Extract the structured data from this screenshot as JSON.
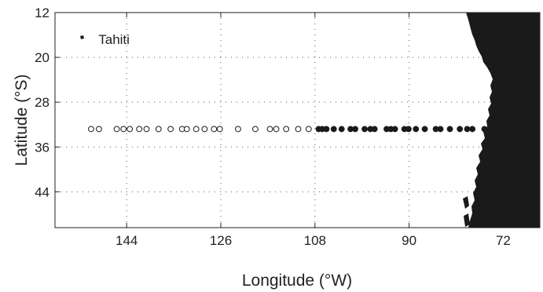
{
  "chart_data": {
    "type": "scatter",
    "xlabel": "Longitude (°W)",
    "ylabel": "Latitude (°S)",
    "xlim": [
      157.7,
      65
    ],
    "ylim": [
      12,
      50.4
    ],
    "x_ticks": [
      144,
      126,
      108,
      90,
      72
    ],
    "y_ticks": [
      12,
      20,
      28,
      36,
      44
    ],
    "grid": true,
    "annotations": [
      {
        "text": "Tahiti",
        "lon": 149.4,
        "lat": 17.6
      }
    ],
    "series": [
      {
        "marker": "open-circle",
        "lat": 32.8,
        "lon": [
          150.8,
          149.3,
          145.9,
          144.6,
          143.4,
          141.6,
          140.2,
          137.9,
          135.6,
          133.4,
          132.5,
          130.7,
          129.1,
          127.3,
          126.2,
          122.7,
          119.4,
          116.6,
          115.4,
          113.5,
          111.2,
          109.2
        ]
      },
      {
        "marker": "filled-circle",
        "lat": 32.8,
        "lon": [
          107.3,
          106.6,
          105.8,
          104.4,
          102.9,
          101.2,
          100.3,
          98.5,
          97.4,
          96.6,
          94.3,
          93.5,
          92.7,
          90.9,
          90.1,
          88.7,
          87.0,
          84.9,
          84.0,
          82.2,
          80.3,
          78.9,
          77.9,
          75.6,
          74.4,
          73.2,
          72.4,
          71.6
        ]
      }
    ]
  }
}
